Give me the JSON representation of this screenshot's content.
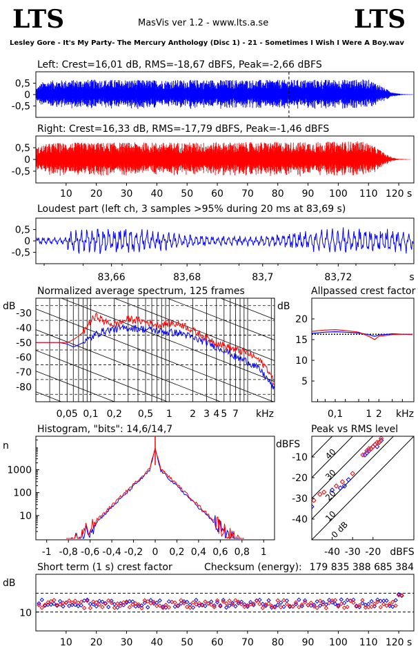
{
  "header": {
    "logo_left": "LTS",
    "logo_right": "LTS",
    "app_title": "MasVis ver 1.2 - www.lts.a.se",
    "track": "Lesley Gore - It's My Party- The Mercury Anthology (Disc 1) - 21 - Sometimes I Wish I Were A Boy.wav"
  },
  "colors": {
    "left": "#0000ff",
    "right": "#ff0000",
    "axis": "#000000"
  },
  "chart_data": [
    {
      "id": "left_waveform",
      "type": "area",
      "title": "Left: Crest=16,01 dB, RMS=-18,67 dBFS, Peak=-2,66 dBFS",
      "yticks": [
        "0,5",
        "0",
        "-0,5"
      ],
      "ylim": [
        -1,
        1
      ],
      "xlim": [
        0,
        125
      ],
      "marker_time": 83.69,
      "envelope": {
        "x": [
          0,
          2,
          5,
          10,
          20,
          40,
          60,
          80,
          100,
          110,
          113,
          116,
          118,
          120,
          122,
          125
        ],
        "amp": [
          0.3,
          0.55,
          0.62,
          0.64,
          0.66,
          0.64,
          0.65,
          0.65,
          0.66,
          0.66,
          0.5,
          0.25,
          0.12,
          0.05,
          0.02,
          0.01
        ]
      }
    },
    {
      "id": "right_waveform",
      "type": "area",
      "title": "Right: Crest=16,33 dB, RMS=-17,79 dBFS, Peak=-1,46 dBFS",
      "yticks": [
        "0,5",
        "0",
        "-0,5"
      ],
      "ylim": [
        -1,
        1
      ],
      "xlim": [
        0,
        125
      ],
      "xticks": [
        "10",
        "20",
        "30",
        "40",
        "50",
        "60",
        "70",
        "80",
        "90",
        "100",
        "110",
        "120 s"
      ],
      "envelope": {
        "x": [
          0,
          2,
          5,
          10,
          20,
          40,
          60,
          80,
          100,
          108,
          110,
          113,
          116,
          118,
          120,
          125
        ],
        "amp": [
          0.5,
          0.62,
          0.7,
          0.72,
          0.72,
          0.72,
          0.73,
          0.74,
          0.76,
          0.78,
          0.7,
          0.5,
          0.22,
          0.1,
          0.03,
          0.0
        ]
      }
    },
    {
      "id": "loudest_part",
      "type": "line",
      "title": "Loudest part (left  ch, 3 samples >95% during 20 ms at 83,69 s)",
      "yticks": [
        "0,5",
        "0",
        "-0,5"
      ],
      "ylim": [
        -1,
        1
      ],
      "xlim": [
        83.64,
        83.74
      ],
      "xticks": [
        "83,66",
        "83,68",
        "83,7",
        "83,72",
        "s"
      ],
      "amp": 0.45
    },
    {
      "id": "spectrum",
      "type": "line",
      "title": "Normalized average spectrum, 125 frames",
      "ylabel": "dB",
      "yticks": [
        "-30",
        "-40",
        "-50",
        "-60",
        "-70",
        "-80"
      ],
      "ylim": [
        -90,
        -20
      ],
      "xticks": [
        "0,05",
        "0,1",
        "0,2",
        "0,5",
        "1",
        "2",
        "3",
        "4",
        "5",
        "7",
        "kHz"
      ],
      "xlim_khz": [
        0.02,
        22
      ],
      "series": [
        {
          "channel": "left",
          "x": [
            0.02,
            0.04,
            0.05,
            0.06,
            0.08,
            0.1,
            0.12,
            0.15,
            0.2,
            0.3,
            0.5,
            0.7,
            1,
            1.5,
            2,
            3,
            4,
            5,
            7,
            10,
            14,
            18,
            22
          ],
          "y": [
            -50,
            -50,
            -51,
            -53,
            -50,
            -47,
            -44,
            -42,
            -41,
            -40,
            -41,
            -42,
            -43,
            -44,
            -47,
            -50,
            -53,
            -55,
            -60,
            -63,
            -68,
            -75,
            -82
          ]
        },
        {
          "channel": "right",
          "x": [
            0.02,
            0.04,
            0.05,
            0.06,
            0.08,
            0.1,
            0.12,
            0.15,
            0.2,
            0.3,
            0.5,
            0.7,
            1,
            1.5,
            2,
            3,
            4,
            5,
            7,
            10,
            14,
            18,
            22
          ],
          "y": [
            -50,
            -50,
            -50,
            -48,
            -43,
            -35,
            -32,
            -36,
            -38,
            -34,
            -36,
            -38,
            -37,
            -38,
            -42,
            -47,
            -50,
            -52,
            -55,
            -57,
            -62,
            -68,
            -78
          ]
        }
      ]
    },
    {
      "id": "allpassed_crest",
      "type": "line",
      "title": "Allpassed crest factor",
      "ylabel": "dB",
      "yticks": [
        "20",
        "15",
        "10",
        "5"
      ],
      "ylim": [
        0,
        25
      ],
      "xticks": [
        "0,1",
        "1",
        "2",
        "kHz"
      ],
      "dotted_level": 16.3,
      "series": [
        {
          "channel": "left",
          "x": [
            0.02,
            0.05,
            0.1,
            0.2,
            0.5,
            1,
            1.5,
            2,
            5,
            10,
            20
          ],
          "y": [
            16.5,
            16.8,
            16.9,
            16.8,
            16.6,
            16.2,
            15.8,
            16.1,
            16.4,
            16.3,
            16.2
          ]
        },
        {
          "channel": "right",
          "x": [
            0.02,
            0.05,
            0.1,
            0.2,
            0.5,
            1,
            1.5,
            2,
            5,
            10,
            20
          ],
          "y": [
            17.0,
            17.3,
            17.4,
            17.2,
            16.8,
            15.8,
            15.0,
            15.8,
            16.2,
            16.3,
            16.3
          ]
        }
      ]
    },
    {
      "id": "histogram",
      "type": "line",
      "title": "Histogram, \"bits\": 14,6/14,7",
      "ylabel": "n",
      "yticks": [
        "1000",
        "100",
        "10"
      ],
      "xticks": [
        "-1",
        "-0,8",
        "-0,6",
        "-0,4",
        "-0,2",
        "0",
        "0,2",
        "0,4",
        "0,6",
        "0,8",
        "1"
      ],
      "xlim": [
        -1.1,
        1.1
      ]
    },
    {
      "id": "peak_vs_rms",
      "type": "scatter",
      "title": "Peak vs RMS level",
      "ylabel": "dBFS",
      "xlabel": "dBFS",
      "yticks": [
        "-10",
        "-20",
        "-30",
        "-40"
      ],
      "xticks": [
        "-40",
        "-30",
        "-20"
      ],
      "xlim": [
        -50,
        0
      ],
      "ylim": [
        -50,
        0
      ],
      "crest_lines": [
        "40",
        "30",
        "20",
        "10",
        "0 dB"
      ],
      "series": [
        {
          "channel": "left",
          "x": [
            -50,
            -40,
            -36,
            -34,
            -32,
            -24,
            -23,
            -22,
            -21,
            -20,
            -19,
            -18,
            -17,
            -16
          ],
          "y": [
            -34,
            -26,
            -25,
            -24,
            -21,
            -9,
            -8,
            -7,
            -6,
            -5,
            -4,
            -5,
            -3,
            -2
          ]
        },
        {
          "channel": "right",
          "x": [
            -49,
            -46,
            -44,
            -38,
            -35,
            -30,
            -25,
            -23,
            -22,
            -21,
            -20,
            -19,
            -18,
            -17,
            -16
          ],
          "y": [
            -31,
            -28,
            -27,
            -24,
            -22,
            -18,
            -9,
            -7,
            -6,
            -6,
            -5,
            -4,
            -3,
            -3,
            -1
          ]
        }
      ]
    },
    {
      "id": "short_term_crest",
      "type": "scatter",
      "title": "Short term (1 s) crest factor",
      "checksum_label": "Checksum (energy):",
      "checksum_value": "179 835 388 685 384",
      "ylabel": "dB",
      "yticks": [
        "10"
      ],
      "ylim": [
        4,
        22
      ],
      "dashed_levels": [
        10,
        16
      ],
      "xticks": [
        "10",
        "20",
        "30",
        "40",
        "50",
        "60",
        "70",
        "80",
        "90",
        "100",
        "110",
        "120 s"
      ],
      "xlim": [
        0,
        125
      ]
    }
  ]
}
